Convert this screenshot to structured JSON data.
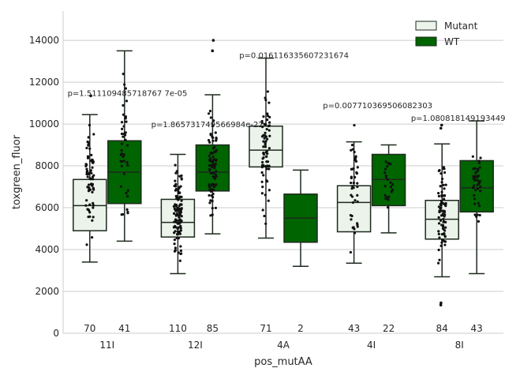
{
  "chart_data": {
    "type": "box",
    "xlabel": "pos_mutAA",
    "ylabel": "toxgreen_fluor",
    "ylim": [
      0,
      15400
    ],
    "yticks": [
      0,
      2000,
      4000,
      6000,
      8000,
      10000,
      12000,
      14000
    ],
    "ytick_labels": [
      "0",
      "2000",
      "4000",
      "6000",
      "8000",
      "10000",
      "12000",
      "14000"
    ],
    "grid": "horizontal",
    "legend_position": "top-right",
    "categories": [
      "11I",
      "12I",
      "4A",
      "4I",
      "8I"
    ],
    "colors": {
      "Mutant": "#ebf3eb",
      "WT": "#006400",
      "edge": "#1e2a1e",
      "points": "#111111"
    },
    "series": [
      {
        "name": "Mutant",
        "counts": [
          "70",
          "110",
          "71",
          "43",
          "84"
        ],
        "boxes": [
          {
            "whislo": 3400,
            "q1": 4900,
            "med": 6100,
            "q3": 7350,
            "whishi": 10450,
            "fliers": [
              11350
            ],
            "jitter_min": 3300,
            "jitter_max": 11300
          },
          {
            "whislo": 2850,
            "q1": 4600,
            "med": 5300,
            "q3": 6400,
            "whishi": 8550,
            "fliers": [],
            "jitter_min": 2900,
            "jitter_max": 8600
          },
          {
            "whislo": 4550,
            "q1": 7950,
            "med": 8750,
            "q3": 9900,
            "whishi": 13150,
            "fliers": [],
            "jitter_min": 4550,
            "jitter_max": 13100
          },
          {
            "whislo": 3350,
            "q1": 4850,
            "med": 6250,
            "q3": 7050,
            "whishi": 9150,
            "fliers": [],
            "jitter_min": 3350,
            "jitter_max": 10800
          },
          {
            "whislo": 2700,
            "q1": 4500,
            "med": 5450,
            "q3": 6350,
            "whishi": 9050,
            "fliers": [
              1350,
              1450,
              9800,
              9950
            ],
            "jitter_min": 2750,
            "jitter_max": 9000
          }
        ]
      },
      {
        "name": "WT",
        "counts": [
          "41",
          "85",
          "2",
          "22",
          "43"
        ],
        "boxes": [
          {
            "whislo": 4400,
            "q1": 6200,
            "med": 7700,
            "q3": 9200,
            "whishi": 13500,
            "fliers": [],
            "jitter_min": 4450,
            "jitter_max": 13400
          },
          {
            "whislo": 4750,
            "q1": 6800,
            "med": 7700,
            "q3": 9000,
            "whishi": 11400,
            "fliers": [
              13500,
              14000
            ],
            "jitter_min": 4700,
            "jitter_max": 11350
          },
          {
            "whislo": 3200,
            "q1": 4350,
            "med": 5500,
            "q3": 6650,
            "whishi": 7800,
            "fliers": [],
            "jitter_min": 0,
            "jitter_max": 0
          },
          {
            "whislo": 4800,
            "q1": 6100,
            "med": 7350,
            "q3": 8550,
            "whishi": 9000,
            "fliers": [],
            "jitter_min": 4900,
            "jitter_max": 9050
          },
          {
            "whislo": 2850,
            "q1": 5800,
            "med": 6950,
            "q3": 8250,
            "whishi": 10150,
            "fliers": [],
            "jitter_min": 5000,
            "jitter_max": 9200
          }
        ]
      }
    ],
    "annotations": [
      {
        "text": "p=1.511109485718767 7e-05",
        "x_cat": 0,
        "offset": -0.45,
        "y": 11500
      },
      {
        "text": "p=1.865731749566984e-22",
        "x_cat": 0,
        "offset": 0.5,
        "y": 10000
      },
      {
        "text": "p=0.016116335607231674",
        "x_cat": 2,
        "offset": -0.5,
        "y": 13300
      },
      {
        "text": "p=0.007710369506082303",
        "x_cat": 3,
        "offset": -0.55,
        "y": 10900
      },
      {
        "text": "p=1.080818149193449 7e-05",
        "x_cat": 4,
        "offset": -0.55,
        "y": 10300
      }
    ]
  }
}
